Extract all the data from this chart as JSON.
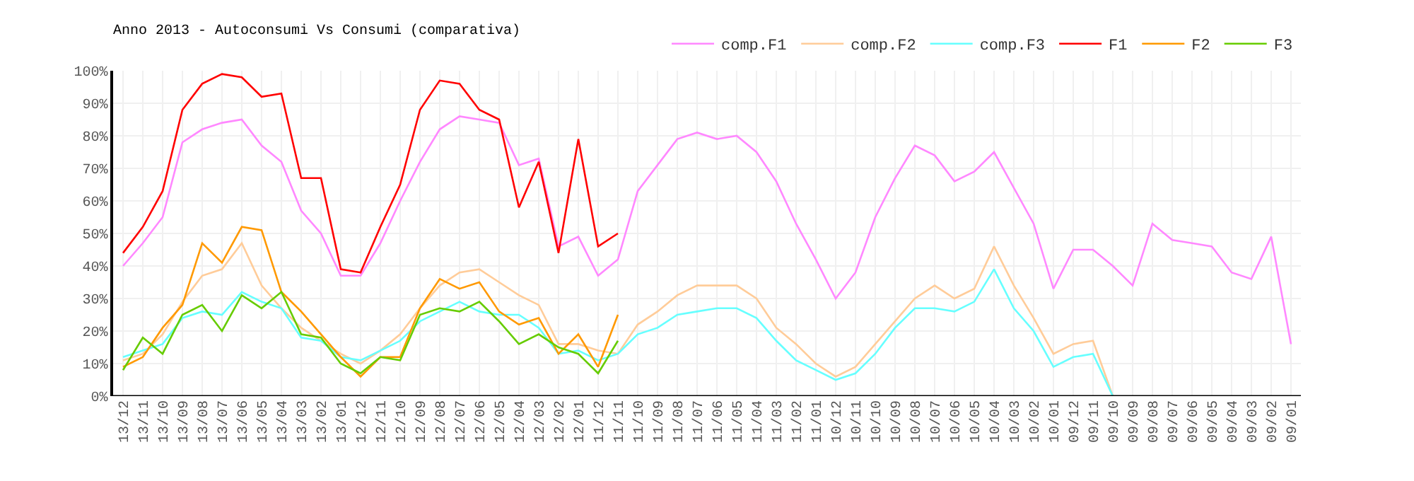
{
  "chart_data": {
    "type": "line",
    "title": "Anno 2013 - Autoconsumi Vs Consumi (comparativa)",
    "categories": [
      "13/12",
      "13/11",
      "13/10",
      "13/09",
      "13/08",
      "13/07",
      "13/06",
      "13/05",
      "13/04",
      "13/03",
      "13/02",
      "13/01",
      "12/12",
      "12/11",
      "12/10",
      "12/09",
      "12/08",
      "12/07",
      "12/06",
      "12/05",
      "12/04",
      "12/03",
      "12/02",
      "12/01",
      "11/12",
      "11/11",
      "11/10",
      "11/09",
      "11/08",
      "11/07",
      "11/06",
      "11/05",
      "11/04",
      "11/03",
      "11/02",
      "11/01",
      "10/12",
      "10/11",
      "10/10",
      "10/09",
      "10/08",
      "10/07",
      "10/06",
      "10/05",
      "10/04",
      "10/03",
      "10/02",
      "10/01",
      "09/12",
      "09/11",
      "09/10",
      "09/09",
      "09/08",
      "09/07",
      "09/06",
      "09/05",
      "09/04",
      "09/03",
      "09/02",
      "09/01"
    ],
    "series": [
      {
        "name": "comp.F1",
        "color": "#ff88ff",
        "values": [
          40,
          47,
          55,
          78,
          82,
          84,
          85,
          77,
          72,
          57,
          50,
          37,
          37,
          47,
          60,
          72,
          82,
          86,
          85,
          84,
          71,
          73,
          46,
          49,
          37,
          42,
          63,
          71,
          79,
          81,
          79,
          80,
          75,
          66,
          53,
          42,
          30,
          38,
          55,
          67,
          77,
          74,
          66,
          69,
          75,
          64,
          53,
          33,
          45,
          45,
          40,
          34,
          53,
          48,
          47,
          46,
          38,
          36,
          49,
          16
        ]
      },
      {
        "name": "comp.F2",
        "color": "#ffcc99",
        "values": [
          11,
          13,
          19,
          29,
          37,
          39,
          47,
          34,
          27,
          21,
          17,
          13,
          10,
          14,
          19,
          27,
          34,
          38,
          39,
          35,
          31,
          28,
          16,
          16,
          14,
          13,
          22,
          26,
          31,
          34,
          34,
          34,
          30,
          21,
          16,
          10,
          6,
          9,
          16,
          23,
          30,
          34,
          30,
          33,
          46,
          34,
          24,
          13,
          16,
          17,
          0,
          null,
          null,
          null,
          null,
          null,
          null,
          null,
          null,
          null
        ]
      },
      {
        "name": "comp.F3",
        "color": "#66ffff",
        "values": [
          12,
          14,
          16,
          24,
          26,
          25,
          32,
          29,
          27,
          18,
          17,
          12,
          11,
          14,
          17,
          23,
          26,
          29,
          26,
          25,
          25,
          21,
          13,
          14,
          11,
          13,
          19,
          21,
          25,
          26,
          27,
          27,
          24,
          17,
          11,
          8,
          5,
          7,
          13,
          21,
          27,
          27,
          26,
          29,
          39,
          27,
          20,
          9,
          12,
          13,
          0,
          null,
          null,
          null,
          null,
          null,
          null,
          null,
          null,
          null
        ]
      },
      {
        "name": "F1",
        "color": "#ff0000",
        "values": [
          44,
          52,
          63,
          88,
          96,
          99,
          98,
          92,
          93,
          67,
          67,
          39,
          38,
          52,
          65,
          88,
          97,
          96,
          88,
          85,
          58,
          72,
          44,
          79,
          46,
          50,
          null,
          null,
          null,
          null,
          null,
          null,
          null,
          null,
          null,
          null,
          null,
          null,
          null,
          null,
          null,
          null,
          null,
          null,
          null,
          null,
          null,
          null,
          null,
          null,
          null,
          null,
          null,
          null,
          null,
          null,
          null,
          null,
          null,
          null
        ]
      },
      {
        "name": "F2",
        "color": "#ff9900",
        "values": [
          9,
          12,
          21,
          28,
          47,
          41,
          52,
          51,
          32,
          26,
          19,
          12,
          6,
          12,
          12,
          27,
          36,
          33,
          35,
          26,
          22,
          24,
          13,
          19,
          9,
          25,
          null,
          null,
          null,
          null,
          null,
          null,
          null,
          null,
          null,
          null,
          null,
          null,
          null,
          null,
          null,
          null,
          null,
          null,
          null,
          null,
          null,
          null,
          null,
          null,
          null,
          null,
          null,
          null,
          null,
          null,
          null,
          null,
          null,
          null
        ]
      },
      {
        "name": "F3",
        "color": "#66cc00",
        "values": [
          8,
          18,
          13,
          25,
          28,
          20,
          31,
          27,
          32,
          19,
          18,
          10,
          7,
          12,
          11,
          25,
          27,
          26,
          29,
          23,
          16,
          19,
          15,
          13,
          7,
          17,
          null,
          null,
          null,
          null,
          null,
          null,
          null,
          null,
          null,
          null,
          null,
          null,
          null,
          null,
          null,
          null,
          null,
          null,
          null,
          null,
          null,
          null,
          null,
          null,
          null,
          null,
          null,
          null,
          null,
          null,
          null,
          null,
          null,
          null
        ]
      }
    ],
    "ylim": [
      0,
      100
    ],
    "yticks": [
      {
        "value": 0,
        "label": "0%"
      },
      {
        "value": 10,
        "label": "10%"
      },
      {
        "value": 20,
        "label": "20%"
      },
      {
        "value": 30,
        "label": "30%"
      },
      {
        "value": 40,
        "label": "40%"
      },
      {
        "value": 50,
        "label": "50%"
      },
      {
        "value": 60,
        "label": "60%"
      },
      {
        "value": 70,
        "label": "70%"
      },
      {
        "value": 80,
        "label": "80%"
      },
      {
        "value": 90,
        "label": "90%"
      },
      {
        "value": 100,
        "label": "100%"
      }
    ],
    "grid": true,
    "legend": "top right",
    "marker": "none",
    "line_style": "solid"
  }
}
